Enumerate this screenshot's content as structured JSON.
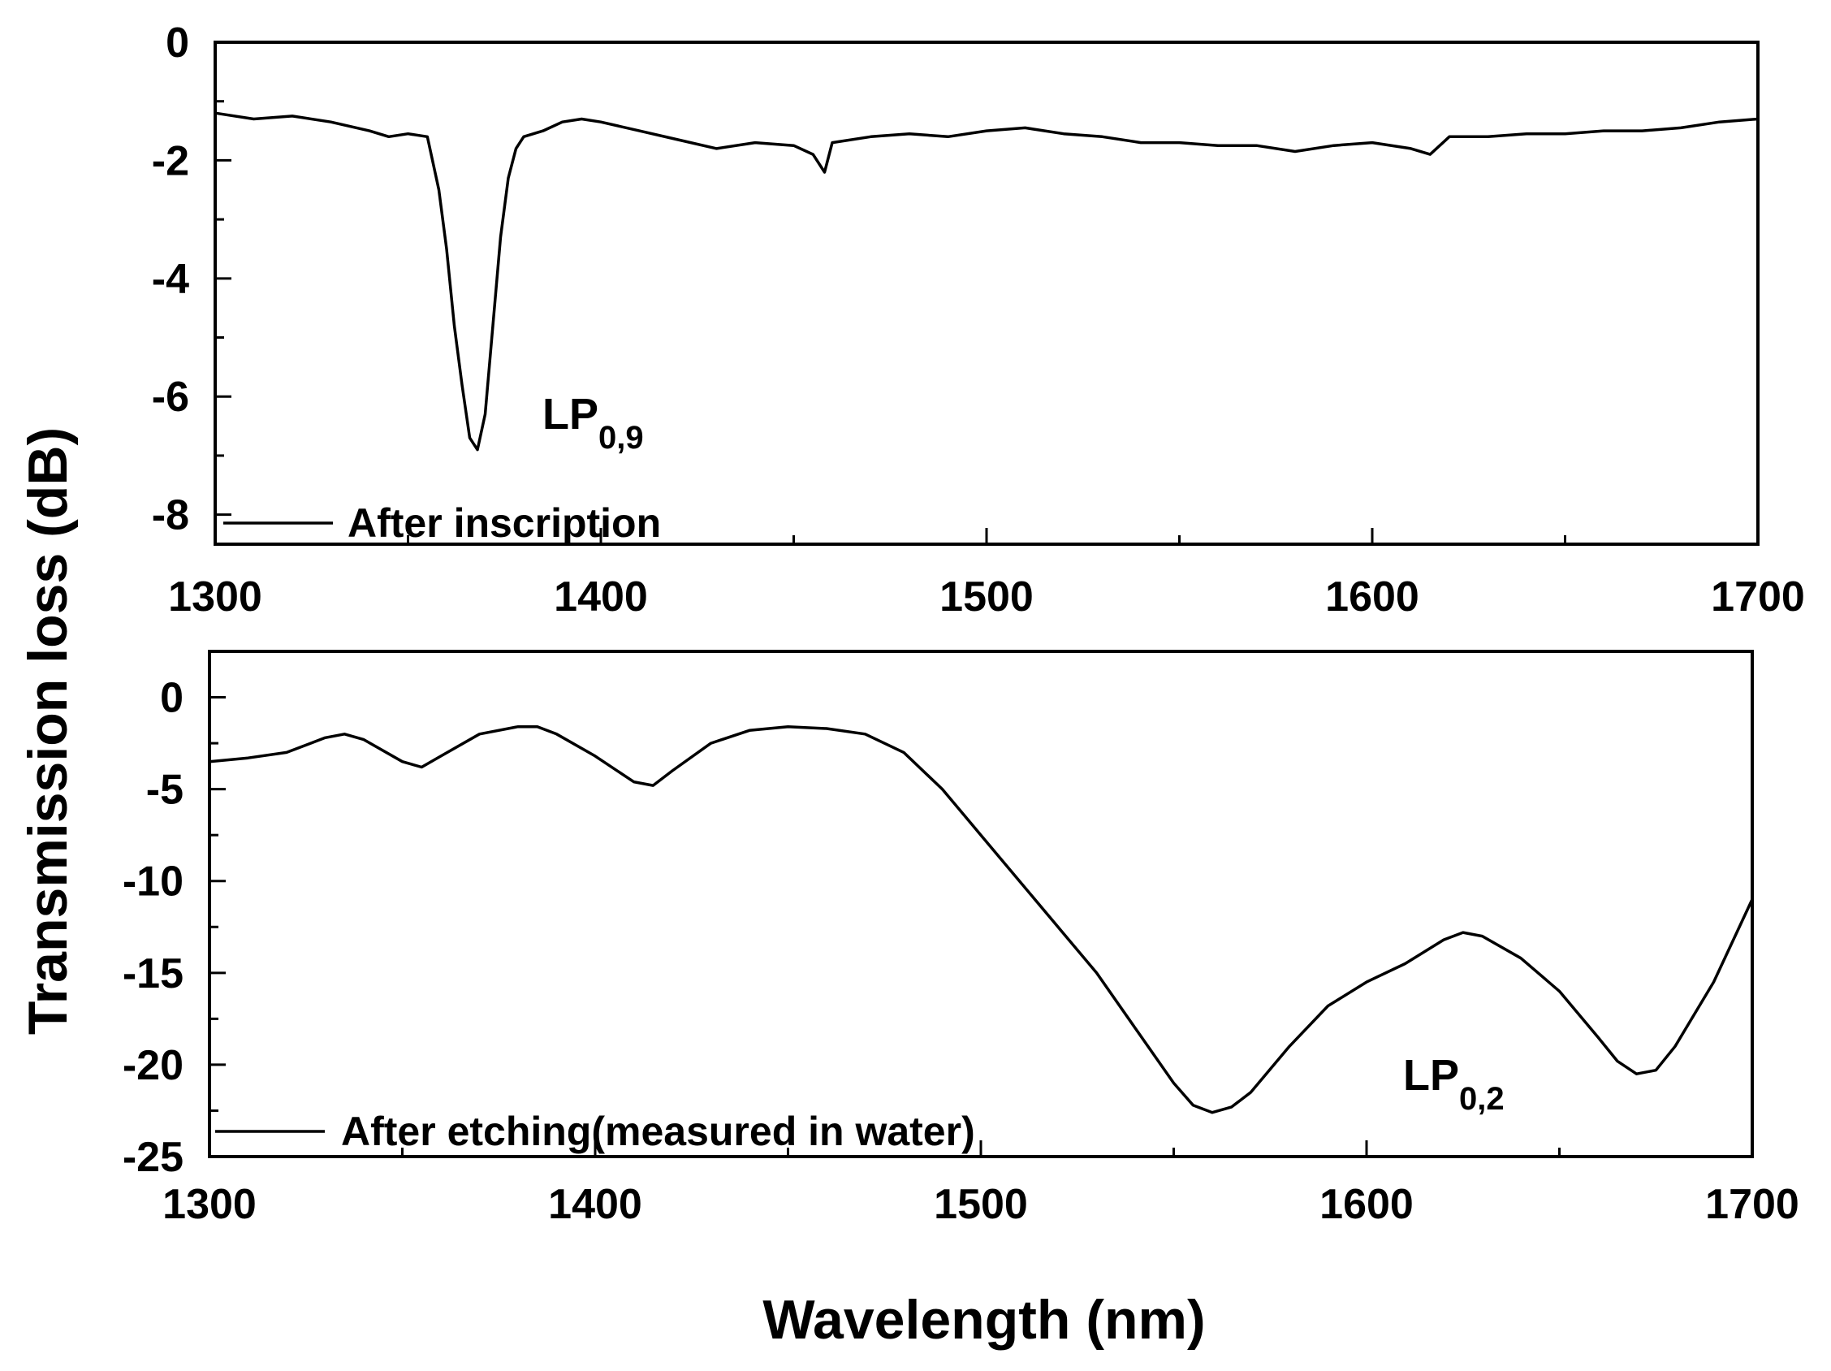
{
  "figure": {
    "ylabel": "Transmission loss (dB)",
    "xlabel": "Wavelength (nm)"
  },
  "chart_data": [
    {
      "type": "line",
      "title": "",
      "xlabel": "Wavelength (nm)",
      "ylabel": "Transmission loss (dB)",
      "xlim": [
        1300,
        1700
      ],
      "ylim": [
        -8.5,
        0
      ],
      "xticks": [
        1300,
        1400,
        1500,
        1600,
        1700
      ],
      "xtick_labels": [
        "1300",
        "1400",
        "1500",
        "1600",
        "1700"
      ],
      "yticks": [
        0,
        -2,
        -4,
        -6,
        -8
      ],
      "ytick_labels": [
        "0",
        "-2",
        "-4",
        "-6",
        "-8"
      ],
      "legend": {
        "label": "After inscription",
        "placement": "bottom-left"
      },
      "annotation": {
        "main": "LP",
        "sub": "0,9",
        "at": [
          1378,
          -6.5
        ]
      },
      "series": [
        {
          "name": "After inscription",
          "x": [
            1300,
            1310,
            1320,
            1330,
            1340,
            1345,
            1350,
            1355,
            1358,
            1360,
            1362,
            1364,
            1366,
            1368,
            1370,
            1372,
            1374,
            1376,
            1378,
            1380,
            1385,
            1390,
            1395,
            1400,
            1410,
            1420,
            1430,
            1440,
            1450,
            1455,
            1458,
            1460,
            1470,
            1480,
            1490,
            1500,
            1510,
            1520,
            1530,
            1540,
            1550,
            1560,
            1570,
            1580,
            1590,
            1600,
            1610,
            1615,
            1620,
            1630,
            1640,
            1650,
            1660,
            1670,
            1680,
            1690,
            1700
          ],
          "y": [
            -1.2,
            -1.3,
            -1.25,
            -1.35,
            -1.5,
            -1.6,
            -1.55,
            -1.6,
            -2.5,
            -3.5,
            -4.8,
            -5.8,
            -6.7,
            -6.9,
            -6.3,
            -4.8,
            -3.3,
            -2.3,
            -1.8,
            -1.6,
            -1.5,
            -1.35,
            -1.3,
            -1.35,
            -1.5,
            -1.65,
            -1.8,
            -1.7,
            -1.75,
            -1.9,
            -2.2,
            -1.7,
            -1.6,
            -1.55,
            -1.6,
            -1.5,
            -1.45,
            -1.55,
            -1.6,
            -1.7,
            -1.7,
            -1.75,
            -1.75,
            -1.85,
            -1.75,
            -1.7,
            -1.8,
            -1.9,
            -1.6,
            -1.6,
            -1.55,
            -1.55,
            -1.5,
            -1.5,
            -1.45,
            -1.35,
            -1.3
          ]
        }
      ]
    },
    {
      "type": "line",
      "title": "",
      "xlabel": "Wavelength (nm)",
      "ylabel": "Transmission loss (dB)",
      "xlim": [
        1300,
        1700
      ],
      "ylim": [
        -25,
        2.5
      ],
      "xticks": [
        1300,
        1400,
        1500,
        1600,
        1700
      ],
      "xtick_labels": [
        "1300",
        "1400",
        "1500",
        "1600",
        "1700"
      ],
      "yticks": [
        0,
        -5,
        -10,
        -15,
        -20,
        -25
      ],
      "ytick_labels": [
        "0",
        "-5",
        "-10",
        "-15",
        "-20",
        "-25"
      ],
      "legend": {
        "label": "After etching(measured in water)",
        "placement": "bottom-left"
      },
      "annotation": {
        "main": "LP",
        "sub": "0,2",
        "at": [
          1608,
          -21
        ]
      },
      "series": [
        {
          "name": "After etching(measured in water)",
          "x": [
            1300,
            1310,
            1320,
            1330,
            1335,
            1340,
            1350,
            1355,
            1360,
            1370,
            1380,
            1385,
            1390,
            1400,
            1410,
            1415,
            1420,
            1430,
            1440,
            1450,
            1460,
            1470,
            1480,
            1490,
            1500,
            1510,
            1520,
            1530,
            1540,
            1550,
            1555,
            1560,
            1565,
            1570,
            1580,
            1590,
            1600,
            1610,
            1620,
            1625,
            1630,
            1640,
            1650,
            1660,
            1665,
            1670,
            1675,
            1680,
            1690,
            1700
          ],
          "y": [
            -3.5,
            -3.3,
            -3.0,
            -2.2,
            -2.0,
            -2.3,
            -3.5,
            -3.8,
            -3.2,
            -2.0,
            -1.6,
            -1.6,
            -2.0,
            -3.2,
            -4.6,
            -4.8,
            -4.0,
            -2.5,
            -1.8,
            -1.6,
            -1.7,
            -2.0,
            -3.0,
            -5.0,
            -7.5,
            -10.0,
            -12.5,
            -15.0,
            -18.0,
            -21.0,
            -22.2,
            -22.6,
            -22.3,
            -21.5,
            -19.0,
            -16.8,
            -15.5,
            -14.5,
            -13.2,
            -12.8,
            -13.0,
            -14.2,
            -16.0,
            -18.5,
            -19.8,
            -20.5,
            -20.3,
            -19.0,
            -15.5,
            -11.0
          ]
        }
      ]
    }
  ]
}
